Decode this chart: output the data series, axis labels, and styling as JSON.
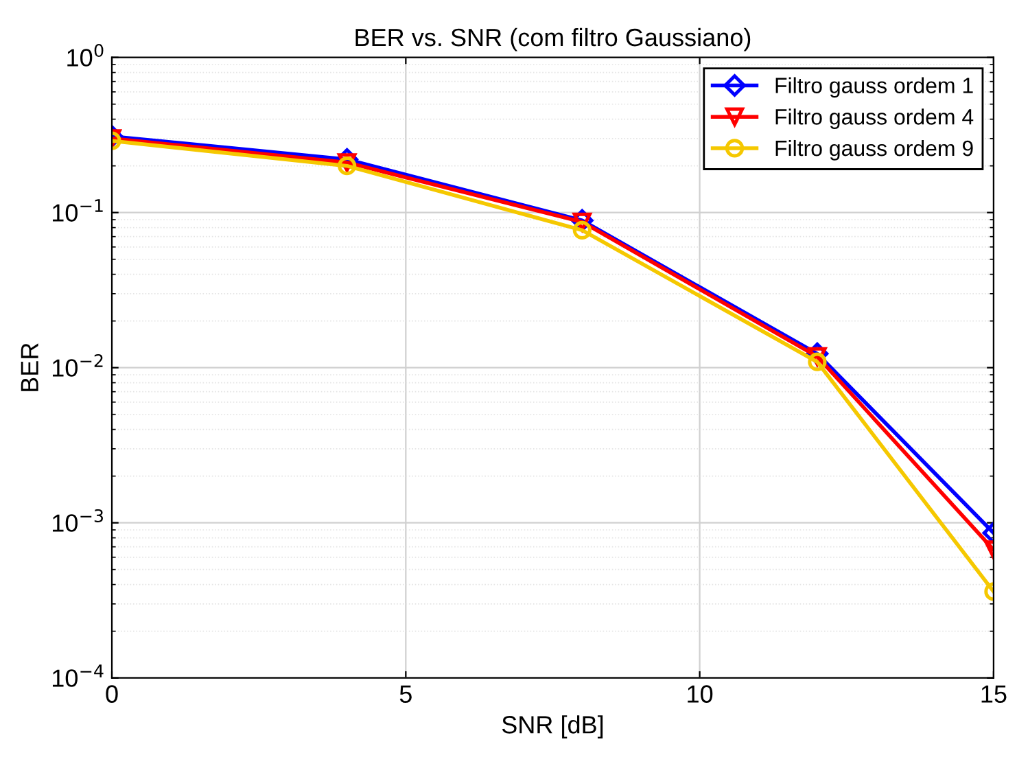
{
  "chart_data": {
    "type": "line",
    "title": "BER vs. SNR (com filtro Gaussiano)",
    "xlabel": "SNR [dB]",
    "ylabel": "BER",
    "x": [
      0,
      4,
      8,
      12,
      15
    ],
    "series": [
      {
        "name": "Filtro gauss ordem 1",
        "color": "#0000ff",
        "marker": "diamond",
        "values": [
          0.31,
          0.22,
          0.089,
          0.0123,
          0.00086
        ]
      },
      {
        "name": "Filtro gauss ordem 4",
        "color": "#ff0000",
        "marker": "triangle",
        "values": [
          0.3,
          0.21,
          0.087,
          0.0118,
          0.00067
        ]
      },
      {
        "name": "Filtro gauss ordem 9",
        "color": "#f5c800",
        "marker": "circle",
        "values": [
          0.29,
          0.2,
          0.077,
          0.0109,
          0.00036
        ]
      }
    ],
    "log": "y",
    "xlim": [
      0,
      15
    ],
    "xticks": [
      0,
      5,
      10,
      15
    ],
    "ylim": [
      0.0001,
      1
    ],
    "yticks": [
      {
        "value": 0.0001,
        "label": "10$^{−4}$"
      },
      {
        "value": 0.001,
        "label": "10$^{−3}$"
      },
      {
        "value": 0.01,
        "label": "10$^{−2}$"
      },
      {
        "value": 0.1,
        "label": "10$^{−1}$"
      },
      {
        "value": 1,
        "label": "10$^{0}$"
      }
    ],
    "grid": true,
    "legend": "top right",
    "line_style": "solid"
  }
}
